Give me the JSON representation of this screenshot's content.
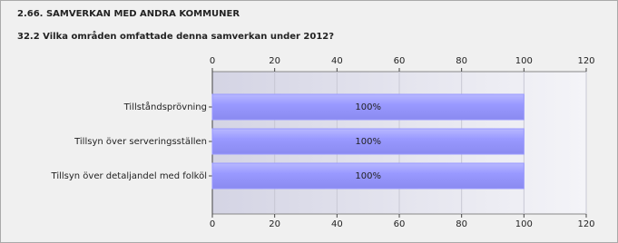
{
  "chart_data": {
    "type": "bar",
    "orientation": "horizontal",
    "title": "2.66. SAMVERKAN MED ANDRA KOMMUNER",
    "subtitle": "32.2 Vilka områden omfattade denna samverkan under 2012?",
    "categories": [
      "Tillståndsprövning",
      "Tillsyn över serveringsställen",
      "Tillsyn över detaljandel med folköl"
    ],
    "values": [
      100,
      100,
      100
    ],
    "value_labels": [
      "100%",
      "100%",
      "100%"
    ],
    "color": "#9999ff",
    "xlim": [
      0,
      120
    ],
    "xticks": [
      0,
      20,
      40,
      60,
      80,
      100,
      120
    ],
    "grid": true
  }
}
